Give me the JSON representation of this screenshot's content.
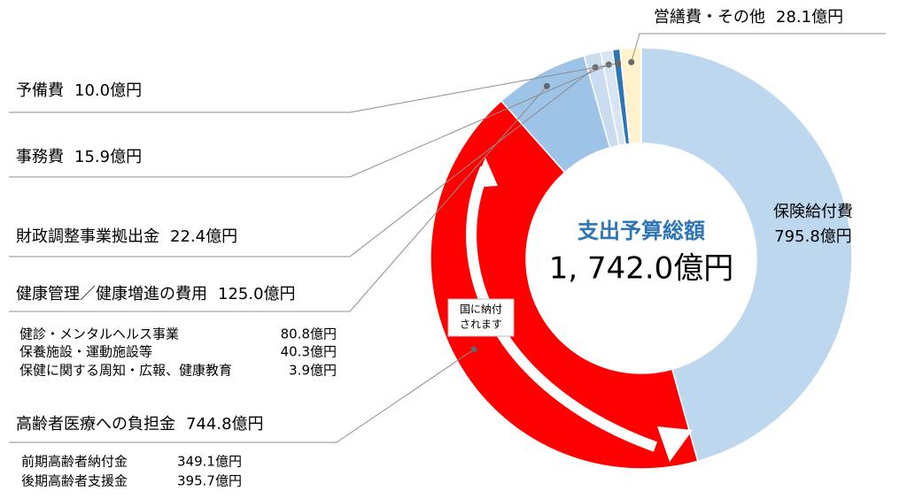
{
  "chart_data": {
    "type": "donut",
    "center_title": "支出予算総額",
    "center_total": "1, 742.0億円",
    "categories": [
      "保険給付費",
      "高齢者医療への負担金",
      "健康管理／健康増進の費用",
      "財政調整事業拠出金",
      "事務費",
      "予備費",
      "営繕費・その他"
    ],
    "values": [
      795.8,
      744.8,
      125.0,
      22.4,
      15.9,
      10.0,
      28.1
    ],
    "value_labels": [
      "795.8億円",
      "744.8億円",
      "125.0億円",
      "22.4億円",
      "15.9億円",
      "10.0億円",
      "28.1億円"
    ],
    "colors": [
      "#bdd7ee",
      "#ff0000",
      "#9dc3e6",
      "#c9dcf0",
      "#d6e4f3",
      "#2e75b6",
      "#fff2cc"
    ],
    "annotation": [
      "国に納付",
      "されます"
    ],
    "health_breakdown": {
      "names": [
        "健診・メンタルヘルス事業",
        "保養施設・運動施設等",
        "保健に関する周知・広報、健康教育"
      ],
      "value_labels": [
        "80.8億円",
        "40.3億円",
        "3.9億円"
      ]
    },
    "elderly_breakdown": {
      "names": [
        "前期高齢者納付金",
        "後期高齢者支援金"
      ],
      "value_labels": [
        "349.1億円",
        "395.7億円"
      ]
    }
  }
}
